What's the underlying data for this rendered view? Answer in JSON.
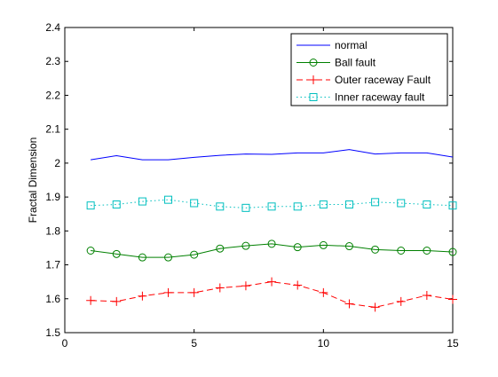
{
  "chart_data": {
    "type": "line",
    "title": "",
    "xlabel": "",
    "ylabel": "Fractal Dimension",
    "xlim": [
      0,
      15
    ],
    "ylim": [
      1.5,
      2.4
    ],
    "xticks": [
      0,
      5,
      10,
      15
    ],
    "yticks": [
      1.5,
      1.6,
      1.7,
      1.8,
      1.9,
      2.0,
      2.1,
      2.2,
      2.3,
      2.4
    ],
    "xtick_labels": [
      "0",
      "5",
      "10",
      "15"
    ],
    "ytick_labels": [
      "1.5",
      "1.6",
      "1.7",
      "1.8",
      "1.9",
      "2",
      "2.1",
      "2.2",
      "2.3",
      "2.4"
    ],
    "grid": false,
    "legend_position": "top-right",
    "x": [
      1,
      2,
      3,
      4,
      5,
      6,
      7,
      8,
      9,
      10,
      11,
      12,
      13,
      14,
      15
    ],
    "series": [
      {
        "name": "normal",
        "color": "#0000ff",
        "line_style": "solid",
        "marker": "none",
        "values": [
          2.01,
          2.022,
          2.01,
          2.01,
          2.017,
          2.023,
          2.027,
          2.026,
          2.03,
          2.03,
          2.04,
          2.027,
          2.03,
          2.03,
          2.018
        ]
      },
      {
        "name": "Ball fault",
        "color": "#008000",
        "line_style": "solid",
        "marker": "circle",
        "values": [
          1.742,
          1.732,
          1.722,
          1.722,
          1.73,
          1.748,
          1.756,
          1.762,
          1.752,
          1.758,
          1.755,
          1.745,
          1.742,
          1.742,
          1.738
        ]
      },
      {
        "name": "Outer raceway Fault",
        "color": "#ff0000",
        "line_style": "dashed",
        "marker": "plus",
        "values": [
          1.595,
          1.592,
          1.608,
          1.618,
          1.618,
          1.632,
          1.638,
          1.65,
          1.64,
          1.618,
          1.585,
          1.575,
          1.592,
          1.61,
          1.598
        ]
      },
      {
        "name": "Inner raceway fault",
        "color": "#00bfbf",
        "line_style": "dotted",
        "marker": "square",
        "values": [
          1.875,
          1.878,
          1.887,
          1.892,
          1.882,
          1.872,
          1.868,
          1.872,
          1.872,
          1.878,
          1.878,
          1.885,
          1.882,
          1.878,
          1.875
        ]
      }
    ]
  }
}
